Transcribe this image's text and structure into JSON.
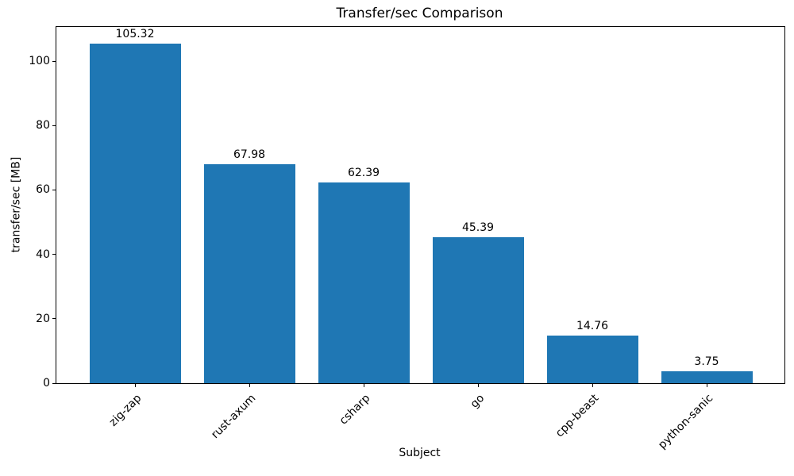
{
  "chart_data": {
    "type": "bar",
    "title": "Transfer/sec Comparison",
    "xlabel": "Subject",
    "ylabel": "transfer/sec [MB]",
    "categories": [
      "zig-zap",
      "rust-axum",
      "csharp",
      "go",
      "cpp-beast",
      "python-sanic"
    ],
    "values": [
      105.32,
      67.98,
      62.39,
      45.39,
      14.76,
      3.75
    ],
    "value_labels": [
      "105.32",
      "67.98",
      "62.39",
      "45.39",
      "14.76",
      "3.75"
    ],
    "yticks": [
      0,
      20,
      40,
      60,
      80,
      100
    ],
    "ylim": [
      0,
      110.6
    ],
    "xtick_rotation_deg": 45,
    "grid": false,
    "legend": null,
    "bar_color": "#1f77b4",
    "text_color": "#000000",
    "background_color": "#ffffff"
  }
}
